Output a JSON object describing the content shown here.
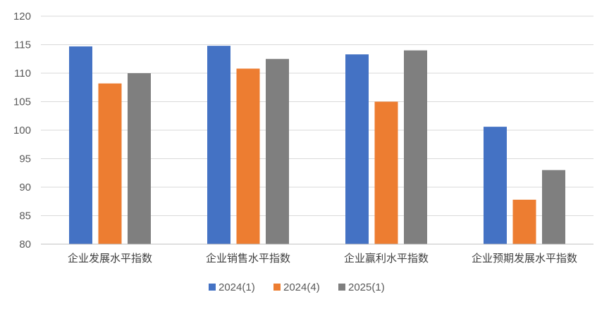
{
  "chart_data": {
    "type": "bar",
    "title": "",
    "xlabel": "",
    "ylabel": "",
    "ylim": [
      80,
      120
    ],
    "yticks": [
      80,
      85,
      90,
      95,
      100,
      105,
      110,
      115,
      120
    ],
    "grid": true,
    "legend_position": "bottom",
    "categories": [
      "企业发展水平指数",
      "企业销售水平指数",
      "企业赢利水平指数",
      "企业预期发展水平指数"
    ],
    "series": [
      {
        "name": "2024(1)",
        "color": "#4472C4",
        "values": [
          114.7,
          114.8,
          113.3,
          100.6
        ]
      },
      {
        "name": "2024(4)",
        "color": "#ED7D31",
        "values": [
          108.2,
          110.8,
          105.0,
          87.8
        ]
      },
      {
        "name": "2025(1)",
        "color": "#7F7F7F",
        "values": [
          110.0,
          112.5,
          114.0,
          93.0
        ]
      }
    ]
  }
}
